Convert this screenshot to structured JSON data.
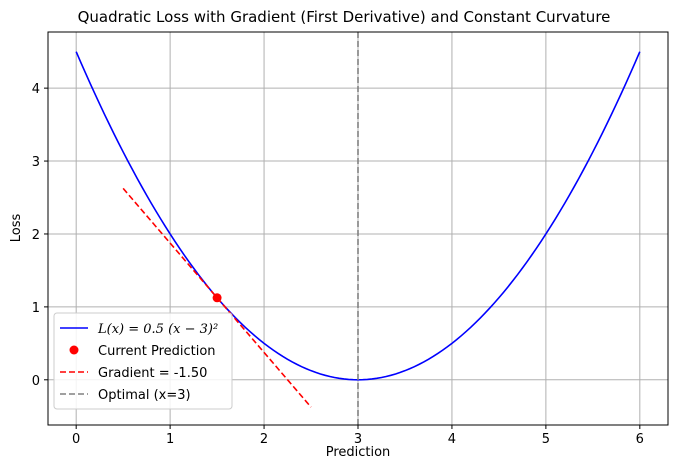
{
  "chart_data": {
    "type": "line",
    "title": "Quadratic Loss with Gradient (First Derivative) and Constant Curvature",
    "xlabel": "Prediction",
    "ylabel": "Loss",
    "xlim": [
      -0.3,
      6.3
    ],
    "ylim": [
      -0.62,
      4.77
    ],
    "xticks": [
      0,
      1,
      2,
      3,
      4,
      5,
      6
    ],
    "yticks": [
      0,
      1,
      2,
      3,
      4
    ],
    "grid": true,
    "legend_position": "lower-left",
    "series": [
      {
        "name": "L(x) = 0.5 (x − 3)²",
        "kind": "curve",
        "function": "0.5*(x-3)^2",
        "x_range": [
          0,
          6
        ],
        "color": "#0000ff",
        "style": "solid"
      },
      {
        "name": "Current Prediction",
        "kind": "point",
        "x": [
          1.5
        ],
        "y": [
          1.125
        ],
        "color": "#ff0000"
      },
      {
        "name": "Gradient = -1.50",
        "kind": "line",
        "x": [
          0.5,
          2.5
        ],
        "y": [
          2.625,
          -0.375
        ],
        "color": "#ff0000",
        "style": "dashed"
      },
      {
        "name": "Optimal (x=3)",
        "kind": "vline",
        "x": [
          3
        ],
        "color": "#808080",
        "style": "dashed"
      }
    ]
  }
}
